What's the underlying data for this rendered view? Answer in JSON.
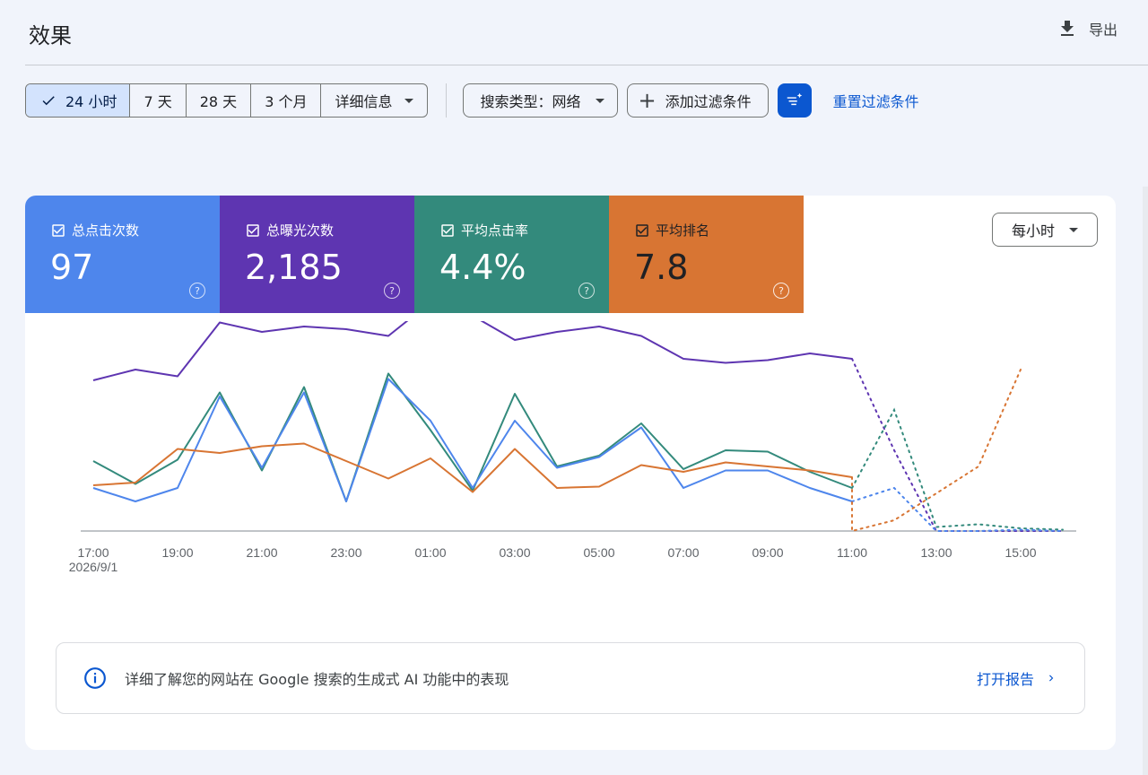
{
  "header": {
    "title": "效果",
    "export_label": "导出"
  },
  "toolbar": {
    "date_ranges": [
      {
        "label": "24 小时",
        "active": true
      },
      {
        "label": "7 天",
        "active": false
      },
      {
        "label": "28 天",
        "active": false
      },
      {
        "label": "3 个月",
        "active": false
      }
    ],
    "details_label": "详细信息",
    "search_type_label": "搜索类型：网络",
    "add_filter_label": "添加过滤条件",
    "reset_filter_label": "重置过滤条件"
  },
  "metrics": [
    {
      "label": "总点击次数",
      "value": "97",
      "color": "#4e86ec",
      "checked": true
    },
    {
      "label": "总曝光次数",
      "value": "2,185",
      "color": "#5e35b1",
      "checked": true
    },
    {
      "label": "平均点击率",
      "value": "4.4%",
      "color": "#338a7c",
      "checked": true
    },
    {
      "label": "平均排名",
      "value": "7.8",
      "color": "#d87533",
      "checked": true
    }
  ],
  "interval_select": {
    "value": "每小时"
  },
  "chart_data": {
    "type": "line",
    "x": [
      "17:00",
      "18:00",
      "19:00",
      "20:00",
      "21:00",
      "22:00",
      "23:00",
      "00:00",
      "01:00",
      "02:00",
      "03:00",
      "04:00",
      "05:00",
      "06:00",
      "07:00",
      "08:00",
      "09:00",
      "10:00",
      "11:00",
      "12:00",
      "13:00",
      "14:00",
      "15:00",
      "16:00"
    ],
    "x_tick_labels": [
      "17:00",
      "19:00",
      "21:00",
      "23:00",
      "01:00",
      "03:00",
      "05:00",
      "07:00",
      "09:00",
      "11:00",
      "13:00",
      "15:00"
    ],
    "x_date_label": "2026/9/1",
    "partial_from_index": 18,
    "series": [
      {
        "name": "总曝光次数",
        "color": "#5e35b1",
        "values": [
          112,
          120,
          115,
          155,
          148,
          152,
          150,
          145,
          170,
          160,
          142,
          148,
          152,
          145,
          128,
          125,
          127,
          132,
          128,
          60,
          0,
          0,
          0,
          0
        ]
      },
      {
        "name": "平均点击率",
        "color": "#338a7c",
        "values": [
          52,
          35,
          53,
          103,
          45,
          107,
          22,
          117,
          75,
          30,
          102,
          48,
          56,
          80,
          46,
          60,
          59,
          44,
          32,
          90,
          3,
          5,
          2,
          1
        ]
      },
      {
        "name": "总点击次数",
        "color": "#4e86ec",
        "values": [
          32,
          22,
          32,
          100,
          47,
          103,
          22,
          113,
          82,
          32,
          82,
          47,
          55,
          77,
          32,
          45,
          45,
          32,
          22,
          32,
          0,
          0,
          1,
          0
        ]
      },
      {
        "name": "平均排名",
        "color": "#d87533",
        "values": [
          34,
          36,
          61,
          58,
          63,
          65,
          52,
          39,
          54,
          29,
          61,
          32,
          33,
          49,
          44,
          51,
          48,
          45,
          40,
          0,
          0,
          0,
          0,
          0
        ]
      }
    ],
    "position_tail_values": [
      0,
      8,
      28,
      48,
      120
    ]
  },
  "banner": {
    "text": "详细了解您的网站在 Google 搜索的生成式 AI 功能中的表现",
    "link_label": "打开报告"
  }
}
